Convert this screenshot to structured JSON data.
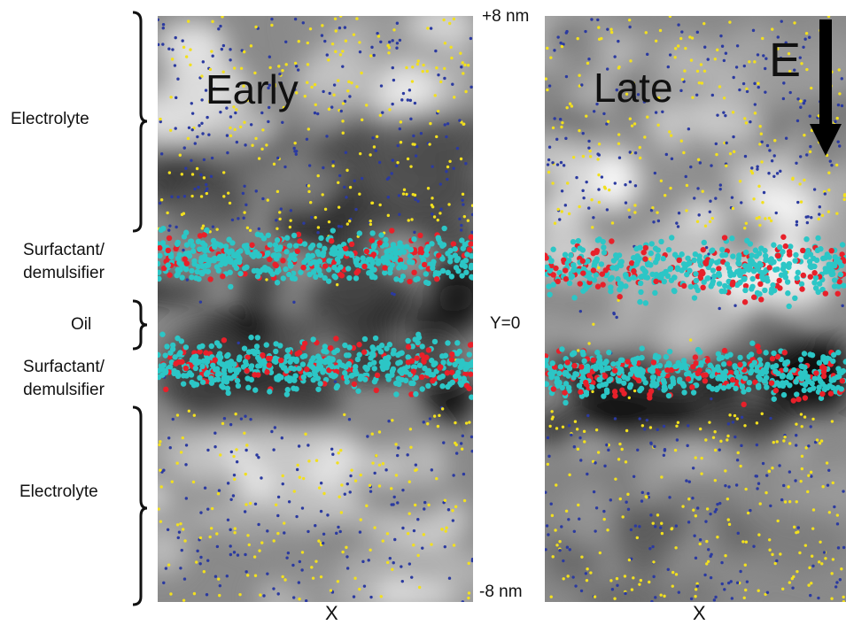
{
  "left_labels": {
    "electrolyte_top": "Electrolyte",
    "surfactant_top_1": "Surfactant/",
    "surfactant_top_2": "demulsifier",
    "oil": "Oil",
    "surfactant_bottom_1": "Surfactant/",
    "surfactant_bottom_2": "demulsifier",
    "electrolyte_bottom": "Electrolyte"
  },
  "panels": [
    {
      "title": "Early",
      "x_label": "X"
    },
    {
      "title": "Late",
      "x_label": "X"
    }
  ],
  "y_labels": {
    "top": "+8 nm",
    "middle": "Y=0",
    "bottom": "-8 nm"
  },
  "field_label": "E",
  "colors": {
    "ion_yellow": "#f2e01e",
    "ion_blue": "#2b3aa0",
    "surfactant": "#2cc6c6",
    "demulsifier": "#e8202a",
    "arrow": "#000000"
  }
}
